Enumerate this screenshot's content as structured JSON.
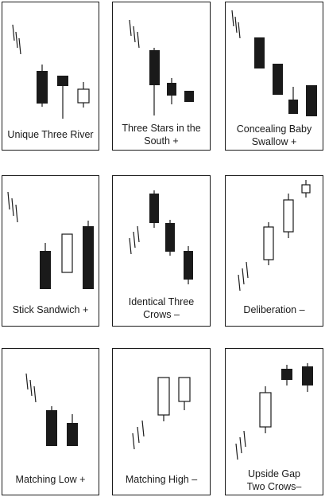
{
  "panels": [
    {
      "label_lines": [
        "Unique Three River"
      ]
    },
    {
      "label_lines": [
        "Three Stars in the",
        "South +"
      ]
    },
    {
      "label_lines": [
        "Concealing Baby",
        "Swallow +"
      ]
    },
    {
      "label_lines": [
        "Stick Sandwich +"
      ]
    },
    {
      "label_lines": [
        "Identical Three",
        "Crows  –"
      ]
    },
    {
      "label_lines": [
        "Deliberation  –"
      ]
    },
    {
      "label_lines": [
        "Matching Low +"
      ]
    },
    {
      "label_lines": [
        "Matching High –"
      ]
    },
    {
      "label_lines": [
        "Upside Gap",
        "Two Crows–"
      ]
    }
  ],
  "colors": {
    "border": "#1a1a1a",
    "black_candle": "#1a1a1a",
    "white_candle": "#ffffff"
  }
}
